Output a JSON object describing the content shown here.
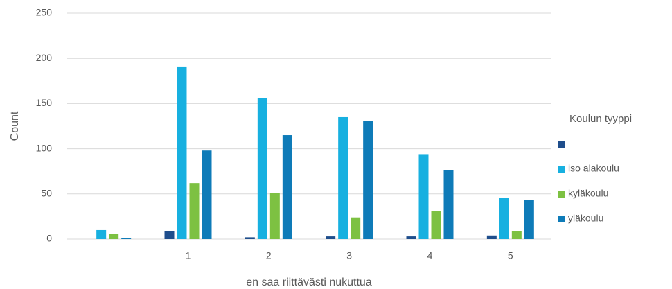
{
  "chart_data": {
    "type": "bar",
    "x_label": "en saa riittävästi nukuttua",
    "y_label": "Count",
    "legend_title": "Koulun tyyppi",
    "categories": [
      null,
      "1",
      "2",
      "3",
      "4",
      "5"
    ],
    "series": [
      {
        "name": null,
        "color": "#1f4e8c",
        "values": [
          0,
          9,
          2,
          3,
          3,
          4
        ]
      },
      {
        "name": "iso alakoulu",
        "color": "#17b0e0",
        "values": [
          10,
          191,
          156,
          135,
          94,
          46
        ]
      },
      {
        "name": "kyläkoulu",
        "color": "#7dc142",
        "values": [
          6,
          62,
          51,
          24,
          31,
          9
        ]
      },
      {
        "name": "yläkoulu",
        "color": "#0e7bb8",
        "values": [
          1,
          98,
          115,
          131,
          76,
          43
        ]
      }
    ],
    "ylim": [
      0,
      250
    ],
    "yticks": [
      0,
      50,
      100,
      150,
      200,
      250
    ],
    "grid": true,
    "legend": "right"
  }
}
